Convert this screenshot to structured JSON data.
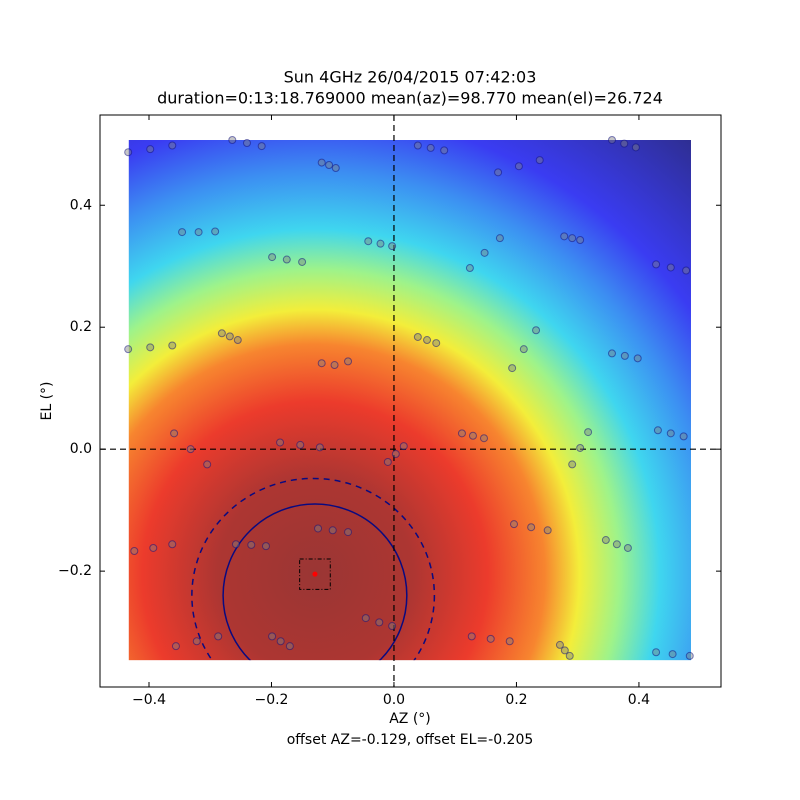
{
  "chart_data": {
    "type": "scatter",
    "title": "Sun 4GHz 26/04/2015 07:42:03",
    "subtitle": "duration=0:13:18.769000 mean(az)=98.770 mean(el)=26.724",
    "x_label": "AZ (°)",
    "y_label": "EL (°)",
    "annotation": "offset AZ=-0.129, offset EL=-0.205",
    "xlim": [
      -0.48,
      0.534
    ],
    "ylim": [
      -0.39,
      0.548
    ],
    "xticks": [
      {
        "value": -0.4,
        "label": "−0.4"
      },
      {
        "value": -0.2,
        "label": "−0.2"
      },
      {
        "value": 0,
        "label": "0.0"
      },
      0.2,
      0.4
    ],
    "yticks": [
      {
        "value": -0.2,
        "label": "−0.2"
      },
      {
        "value": 0,
        "label": "0.0"
      },
      0.2,
      0.4
    ],
    "heatmap": {
      "extent": [
        -0.433,
        0.485,
        -0.346,
        0.507
      ]
    },
    "crosshair": {
      "x": 0,
      "y": 0
    },
    "center": {
      "x": -0.129,
      "y": -0.205,
      "color": "#ff0000"
    },
    "box_halfwidth": 0.025,
    "contours": [
      {
        "cx": -0.129,
        "cy": -0.24,
        "rx": 0.15,
        "ry": 0.15,
        "style": "solid"
      },
      {
        "cx": -0.132,
        "cy": -0.24,
        "rx": 0.198,
        "ry": 0.192,
        "style": "dashed"
      }
    ],
    "series": [
      {
        "color": "#808080",
        "edgecolor": "#0a0a80",
        "x": [
          -0.434,
          -0.398,
          -0.362,
          -0.264,
          -0.24,
          -0.216,
          -0.118,
          -0.106,
          -0.095,
          0.039,
          0.06,
          0.082,
          0.17,
          0.204,
          0.238,
          0.356,
          0.376,
          0.395,
          -0.346,
          -0.319,
          -0.292,
          -0.199,
          -0.175,
          -0.15,
          -0.042,
          -0.022,
          -0.003,
          0.124,
          0.148,
          0.173,
          0.278,
          0.291,
          0.304,
          0.428,
          0.452,
          0.477,
          -0.434,
          -0.398,
          -0.362,
          -0.281,
          -0.268,
          -0.255,
          -0.118,
          -0.097,
          -0.075,
          0.039,
          0.054,
          0.069,
          0.193,
          0.212,
          0.232,
          0.356,
          0.377,
          0.398,
          -0.359,
          -0.332,
          -0.305,
          -0.186,
          -0.153,
          -0.121,
          -0.01,
          0.003,
          0.016,
          0.111,
          0.129,
          0.147,
          0.291,
          0.304,
          0.317,
          0.431,
          0.452,
          0.473,
          -0.424,
          -0.393,
          -0.362,
          -0.258,
          -0.233,
          -0.209,
          -0.124,
          -0.1,
          -0.075,
          0.196,
          0.224,
          0.251,
          0.346,
          0.364,
          0.382,
          -0.356,
          -0.322,
          -0.287,
          -0.199,
          -0.185,
          -0.17,
          -0.046,
          -0.024,
          -0.003,
          0.127,
          0.158,
          0.189,
          0.271,
          0.279,
          0.287,
          0.428,
          0.455,
          0.483
        ],
        "y": [
          0.487,
          0.492,
          0.498,
          0.507,
          0.502,
          0.497,
          0.47,
          0.466,
          0.461,
          0.498,
          0.494,
          0.49,
          0.454,
          0.464,
          0.474,
          0.507,
          0.501,
          0.495,
          0.356,
          0.356,
          0.357,
          0.315,
          0.311,
          0.307,
          0.341,
          0.337,
          0.333,
          0.297,
          0.322,
          0.346,
          0.349,
          0.346,
          0.343,
          0.303,
          0.298,
          0.293,
          0.164,
          0.167,
          0.17,
          0.19,
          0.185,
          0.179,
          0.141,
          0.138,
          0.144,
          0.184,
          0.179,
          0.174,
          0.133,
          0.164,
          0.195,
          0.157,
          0.153,
          0.149,
          0.026,
          0.0,
          -0.025,
          0.011,
          0.007,
          0.003,
          -0.021,
          -0.008,
          0.005,
          0.026,
          0.022,
          0.018,
          -0.025,
          0.002,
          0.028,
          0.031,
          0.026,
          0.021,
          -0.167,
          -0.162,
          -0.156,
          -0.156,
          -0.157,
          -0.159,
          -0.13,
          -0.133,
          -0.136,
          -0.123,
          -0.128,
          -0.133,
          -0.149,
          -0.156,
          -0.162,
          -0.323,
          -0.315,
          -0.307,
          -0.307,
          -0.315,
          -0.323,
          -0.277,
          -0.284,
          -0.29,
          -0.307,
          -0.311,
          -0.315,
          -0.321,
          -0.33,
          -0.339,
          -0.333,
          -0.336,
          -0.339
        ]
      }
    ]
  }
}
